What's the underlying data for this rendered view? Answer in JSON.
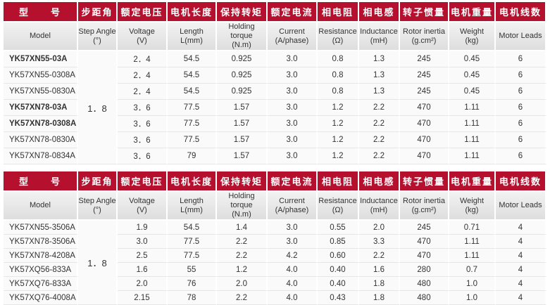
{
  "headers_cn": [
    "型　　号",
    "步距角",
    "额定电压",
    "电机长度",
    "保持转矩",
    "额定电流",
    "相电阻",
    "相电感",
    "转子惯量",
    "电机重量",
    "电机线数"
  ],
  "headers_en": [
    [
      "Model"
    ],
    [
      "Step Angle",
      "(°)"
    ],
    [
      "Voltage",
      "(V)"
    ],
    [
      "Length",
      "L(mm)"
    ],
    [
      "Holding torque",
      "(N.m)"
    ],
    [
      "Current",
      "(A/phase)"
    ],
    [
      "Resistance",
      "(Ω)"
    ],
    [
      "Inductance",
      "(mH)"
    ],
    [
      "Rotor inertia",
      "(g.cm²)"
    ],
    [
      "Weight",
      "(kg)"
    ],
    [
      "Motor  Leads"
    ]
  ],
  "table1": {
    "step_angle": "1．8",
    "rows": [
      [
        "YK57XN55-03A",
        "2．4",
        "54.5",
        "0.925",
        "3.0",
        "0.8",
        "1.3",
        "245",
        "0.45",
        "6"
      ],
      [
        "YK57XN55-0308A",
        "2．4",
        "54.5",
        "0.925",
        "3.0",
        "0.8",
        "1.3",
        "245",
        "0.45",
        "6"
      ],
      [
        "YK57XN55-0830A",
        "2．4",
        "54.5",
        "0.925",
        "3.0",
        "0.8",
        "1.3",
        "245",
        "0.45",
        "6"
      ],
      [
        "YK57XN78-03A",
        "3．6",
        "77.5",
        "1.57",
        "3.0",
        "1.2",
        "2.2",
        "470",
        "1.11",
        "6"
      ],
      [
        "YK57XN78-0308A",
        "3．6",
        "77.5",
        "1.57",
        "3.0",
        "1.2",
        "2.2",
        "470",
        "1.11",
        "6"
      ],
      [
        "YK57XN78-0830A",
        "3．6",
        "77.5",
        "1.57",
        "3.0",
        "1.2",
        "2.2",
        "470",
        "1.11",
        "6"
      ],
      [
        "YK57XN78-0834A",
        "3．6",
        "79",
        "1.57",
        "3.0",
        "1.2",
        "2.2",
        "470",
        "1.11",
        "6"
      ]
    ]
  },
  "table2": {
    "step_angle": "1．8",
    "rows": [
      [
        "YK57XN55-3506A",
        "1.9",
        "54.5",
        "1.4",
        "3.0",
        "0.55",
        "2.0",
        "245",
        "0.71",
        "4"
      ],
      [
        "YK57XN78-3506A",
        "3.0",
        "77.5",
        "2.2",
        "3.0",
        "0.85",
        "3.3",
        "470",
        "1.11",
        "4"
      ],
      [
        "YK57XN78-4208A",
        "2.5",
        "77.5",
        "2.2",
        "4.2",
        "0.60",
        "2.2",
        "470",
        "1.11",
        "4"
      ],
      [
        "YK57XQ56-833A",
        "1.6",
        "55",
        "1.2",
        "4.0",
        "0.40",
        "1.6",
        "280",
        "0.7",
        "4"
      ],
      [
        "YK57XQ76-833A",
        "2.0",
        "76",
        "2.0",
        "4.0",
        "0.40",
        "1.8",
        "480",
        "1.0",
        "4"
      ],
      [
        "YK57XQ76-4008A",
        "2.15",
        "78",
        "2.2",
        "4.0",
        "0.43",
        "1.8",
        "480",
        "1.0",
        "4"
      ]
    ]
  }
}
